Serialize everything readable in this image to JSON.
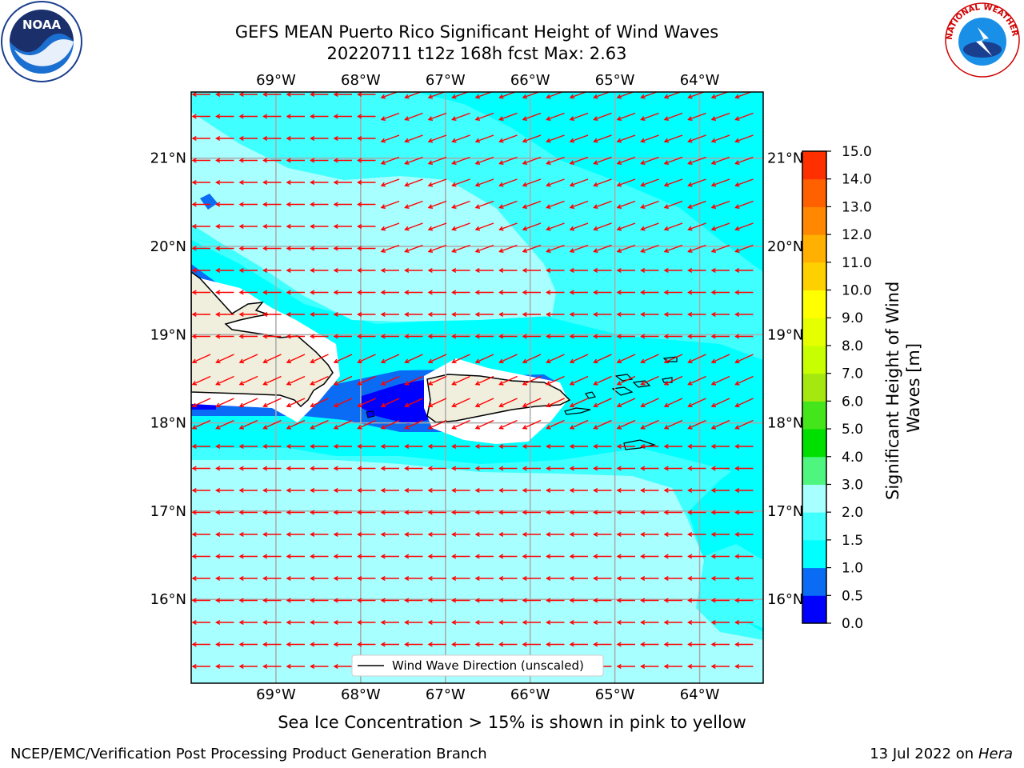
{
  "title": {
    "line1": "GEFS MEAN Puerto Rico Significant Height of Wind Waves",
    "line2": "20220711 t12z 168h fcst   Max: 2.63"
  },
  "logos": {
    "noaa": {
      "icon": "noaa-logo",
      "text": "NOAA"
    },
    "nws": {
      "icon": "nws-logo",
      "text": "NATIONAL WEATHER SERVICE"
    }
  },
  "map": {
    "lon_range": [
      -70,
      -63.25
    ],
    "lat_range": [
      15.05,
      21.75
    ],
    "lon_ticks": [
      {
        "value": -69,
        "label": "69°W"
      },
      {
        "value": -68,
        "label": "68°W"
      },
      {
        "value": -67,
        "label": "67°W"
      },
      {
        "value": -66,
        "label": "66°W"
      },
      {
        "value": -65,
        "label": "65°W"
      },
      {
        "value": -64,
        "label": "64°W"
      }
    ],
    "lat_ticks": [
      {
        "value": 21,
        "label": "21°N"
      },
      {
        "value": 20,
        "label": "20°N"
      },
      {
        "value": 19,
        "label": "19°N"
      },
      {
        "value": 18,
        "label": "18°N"
      },
      {
        "value": 17,
        "label": "17°N"
      },
      {
        "value": 16,
        "label": "16°N"
      }
    ],
    "grid": true,
    "field_colors": {
      "very_low": "#0000ff",
      "low": "#0a6cf5",
      "mid": "#00ffff",
      "high": "#40ffff",
      "highest": "#a8ffff"
    },
    "land_color": "#f0eedc",
    "arrow_color": "#ff0000",
    "legend": {
      "label": "Wind Wave Direction (unscaled)",
      "placement": "lower-center"
    }
  },
  "colorbar": {
    "label": "Significant Height of Wind Waves [m]",
    "ticks": [
      "0.0",
      "0.5",
      "1.0",
      "1.5",
      "2.0",
      "3.0",
      "4.0",
      "5.0",
      "6.0",
      "7.0",
      "8.0",
      "9.0",
      "10.0",
      "11.0",
      "12.0",
      "13.0",
      "14.0",
      "15.0"
    ],
    "colors": [
      "#0000ff",
      "#0a6cf5",
      "#00ffff",
      "#40ffff",
      "#a8ffff",
      "#4ef57e",
      "#00e000",
      "#44e51a",
      "#a5e80f",
      "#c8ff00",
      "#e5ff00",
      "#ffff00",
      "#ffd000",
      "#ffb000",
      "#ff8800",
      "#ff6000",
      "#ff3000",
      "#ff0000"
    ]
  },
  "bottom_note": "Sea Ice Concentration > 15% is shown in pink to yellow",
  "footer": {
    "left": "NCEP/EMC/Verification Post Processing Product Generation Branch",
    "right_prefix": "13 Jul 2022 on ",
    "right_host": "Hera"
  }
}
